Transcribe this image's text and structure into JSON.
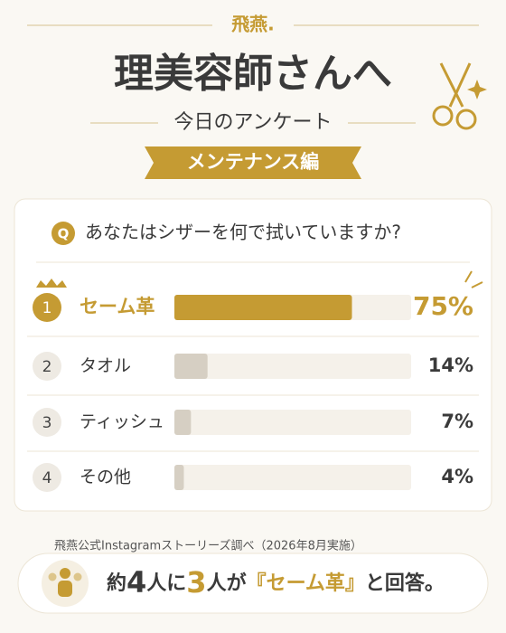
{
  "brand": "飛燕.",
  "title": "理美容師さんへ",
  "subtitle": "今日のアンケート",
  "badge": "メンテナンス編",
  "question_mark": "Q",
  "question": "あなたはシザーを何で拭いていますか?",
  "source": "飛燕公式Instagramストーリーズ調べ（2026年8月実施）",
  "conclusion": [
    "約",
    "4",
    "人に",
    "3",
    "人が",
    "『セーム革』",
    "と回答。"
  ],
  "chart_data": {
    "type": "bar",
    "orientation": "horizontal",
    "ranks": [
      1,
      2,
      3,
      4
    ],
    "categories": [
      "セーム革",
      "タオル",
      "ティッシュ",
      "その他"
    ],
    "values": [
      75,
      14,
      7,
      4
    ],
    "value_labels": [
      "75%",
      "14%",
      "7%",
      "4%"
    ],
    "colors": [
      "#c59b33",
      "#d6cfc3",
      "#d6cfc3",
      "#d6cfc3"
    ],
    "highlight_color": "#c59b33",
    "xlim": [
      0,
      100
    ]
  }
}
